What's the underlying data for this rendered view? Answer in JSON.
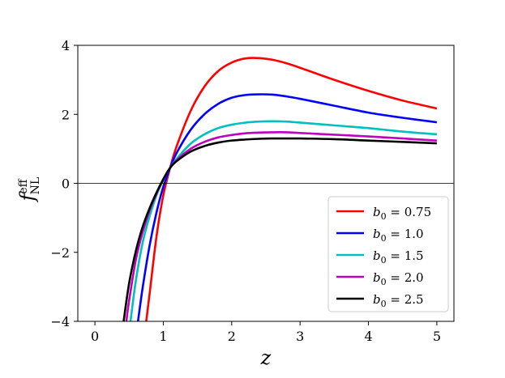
{
  "chart_data": {
    "type": "line",
    "xlabel": "z",
    "ylabel": "f_NL^eff",
    "ylabel_main": "f",
    "ylabel_sup": "eff",
    "ylabel_sub": "NL",
    "xlim": [
      -0.25,
      5.25
    ],
    "ylim": [
      -4,
      4
    ],
    "xticks": [
      0,
      1,
      2,
      3,
      4,
      5
    ],
    "yticks": [
      -4,
      -2,
      0,
      2,
      4
    ],
    "xtick_labels": [
      "0",
      "1",
      "2",
      "3",
      "4",
      "5"
    ],
    "ytick_labels": [
      "−4",
      "−2",
      "0",
      "2",
      "4"
    ],
    "grid": false,
    "zero_line": true,
    "legend_placement": "lower-right",
    "series": [
      {
        "name": "b0 = 0.75",
        "b0_label": "0.75",
        "color": "#ff0000",
        "x": [
          0.75,
          0.8,
          0.9,
          1.0,
          1.1,
          1.2,
          1.4,
          1.6,
          1.8,
          2.0,
          2.2,
          2.4,
          2.6,
          2.8,
          3.0,
          3.5,
          4.0,
          4.5,
          5.0
        ],
        "y": [
          -4.0,
          -3.2,
          -1.55,
          -0.35,
          0.45,
          1.1,
          2.1,
          2.8,
          3.25,
          3.5,
          3.62,
          3.63,
          3.58,
          3.48,
          3.35,
          3.0,
          2.68,
          2.4,
          2.17
        ]
      },
      {
        "name": "b0 = 1.0",
        "b0_label": "1.0",
        "color": "#0000ff",
        "x": [
          0.63,
          0.7,
          0.8,
          0.9,
          1.0,
          1.1,
          1.2,
          1.4,
          1.6,
          1.8,
          2.0,
          2.2,
          2.4,
          2.6,
          2.8,
          3.0,
          3.5,
          4.0,
          4.5,
          5.0
        ],
        "y": [
          -4.0,
          -3.0,
          -1.8,
          -0.85,
          -0.1,
          0.45,
          0.9,
          1.55,
          2.0,
          2.3,
          2.48,
          2.56,
          2.58,
          2.57,
          2.52,
          2.45,
          2.25,
          2.05,
          1.9,
          1.77
        ]
      },
      {
        "name": "b0 = 1.5",
        "b0_label": "1.5",
        "color": "#00bfbf",
        "x": [
          0.52,
          0.6,
          0.7,
          0.8,
          0.9,
          1.0,
          1.1,
          1.2,
          1.4,
          1.6,
          1.8,
          2.0,
          2.2,
          2.4,
          2.6,
          2.8,
          3.0,
          3.5,
          4.0,
          4.5,
          5.0
        ],
        "y": [
          -4.0,
          -2.8,
          -1.7,
          -0.95,
          -0.35,
          0.1,
          0.45,
          0.72,
          1.15,
          1.42,
          1.6,
          1.7,
          1.76,
          1.79,
          1.8,
          1.79,
          1.76,
          1.68,
          1.6,
          1.5,
          1.42
        ]
      },
      {
        "name": "b0 = 2.0",
        "b0_label": "2.0",
        "color": "#bf00bf",
        "x": [
          0.46,
          0.5,
          0.6,
          0.7,
          0.8,
          0.9,
          1.0,
          1.1,
          1.2,
          1.4,
          1.6,
          1.8,
          2.0,
          2.2,
          2.4,
          2.6,
          2.8,
          3.0,
          3.5,
          4.0,
          4.5,
          5.0
        ],
        "y": [
          -4.0,
          -3.4,
          -2.2,
          -1.4,
          -0.78,
          -0.3,
          0.12,
          0.45,
          0.68,
          1.0,
          1.2,
          1.33,
          1.4,
          1.45,
          1.47,
          1.48,
          1.48,
          1.46,
          1.41,
          1.36,
          1.3,
          1.24
        ]
      },
      {
        "name": "b0 = 2.5",
        "b0_label": "2.5",
        "color": "#000000",
        "x": [
          0.42,
          0.5,
          0.6,
          0.7,
          0.8,
          0.9,
          1.0,
          1.1,
          1.2,
          1.4,
          1.6,
          1.8,
          2.0,
          2.2,
          2.4,
          2.6,
          2.8,
          3.0,
          3.5,
          4.0,
          4.5,
          5.0
        ],
        "y": [
          -4.0,
          -2.9,
          -1.95,
          -1.25,
          -0.72,
          -0.27,
          0.12,
          0.45,
          0.65,
          0.92,
          1.08,
          1.18,
          1.24,
          1.27,
          1.29,
          1.3,
          1.3,
          1.3,
          1.28,
          1.24,
          1.2,
          1.16
        ]
      }
    ]
  }
}
